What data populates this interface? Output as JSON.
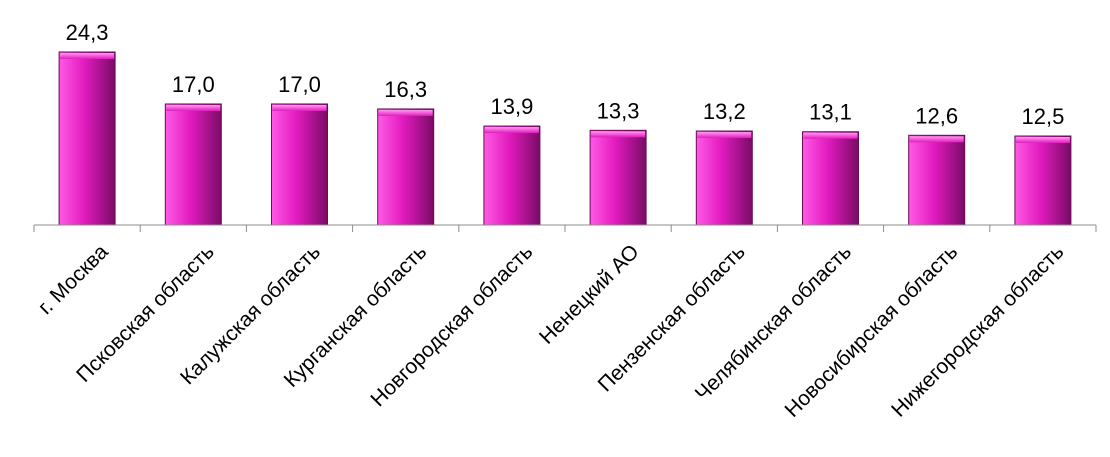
{
  "chart_data": {
    "type": "bar",
    "title": "",
    "xlabel": "",
    "ylabel": "",
    "ylim": [
      0,
      24.3
    ],
    "grid": false,
    "legend": "none",
    "bar_color": "#e21bbe",
    "categories": [
      "г. Москва",
      "Псковская область",
      "Калужская область",
      "Курганская область",
      "Новгородская  область",
      "Ненецкий АО",
      "Пензенская область",
      "Челябинская область",
      "Новосибирская область",
      "Нижегородская область"
    ],
    "values": [
      24.3,
      17.0,
      17.0,
      16.3,
      13.9,
      13.3,
      13.2,
      13.1,
      12.6,
      12.5
    ],
    "value_labels": [
      "24,3",
      "17,0",
      "17,0",
      "16,3",
      "13,9",
      "13,3",
      "13,2",
      "13,1",
      "12,6",
      "12,5"
    ]
  }
}
